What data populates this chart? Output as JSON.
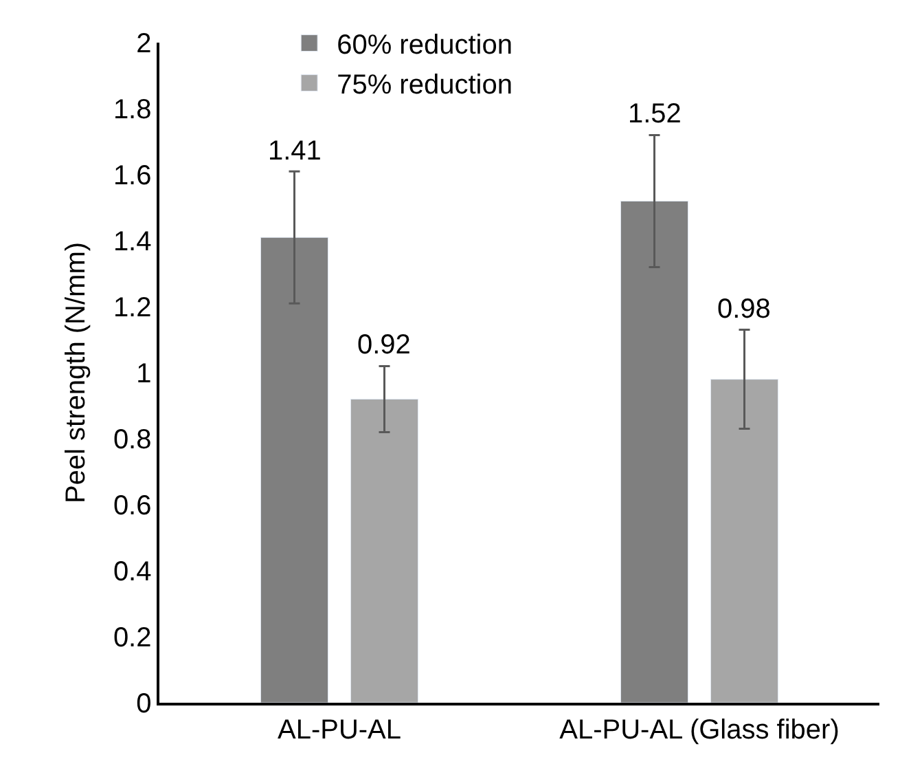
{
  "chart_data": {
    "type": "bar",
    "ylabel": "Peel strength (N/mm)",
    "categories": [
      "AL-PU-AL",
      "AL-PU-AL (Glass fiber)"
    ],
    "series": [
      {
        "name": "60% reduction",
        "color": "#7f7f7f",
        "values": [
          1.41,
          1.52
        ],
        "errors": [
          0.2,
          0.2
        ]
      },
      {
        "name": "75% reduction",
        "color": "#a6a6a6",
        "values": [
          0.92,
          0.98
        ],
        "errors": [
          0.1,
          0.15
        ]
      }
    ],
    "ylim": [
      0,
      2
    ],
    "yticks": [
      0,
      0.2,
      0.4,
      0.6,
      0.8,
      1,
      1.2,
      1.4,
      1.6,
      1.8,
      2
    ],
    "data_labels": true,
    "legend": "top"
  }
}
